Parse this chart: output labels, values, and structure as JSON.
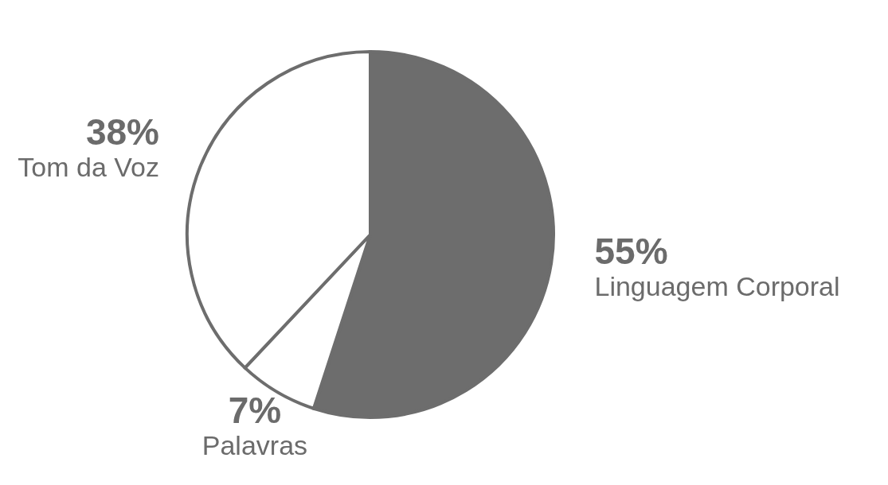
{
  "chart_data": {
    "type": "pie",
    "categories": [
      "Linguagem Corporal",
      "Palavras",
      "Tom da Voz"
    ],
    "values": [
      55,
      7,
      38
    ],
    "colors": [
      "#6d6d6d",
      "#ffffff",
      "#ffffff"
    ],
    "value_labels": [
      "55%",
      "7%",
      "38%"
    ]
  }
}
